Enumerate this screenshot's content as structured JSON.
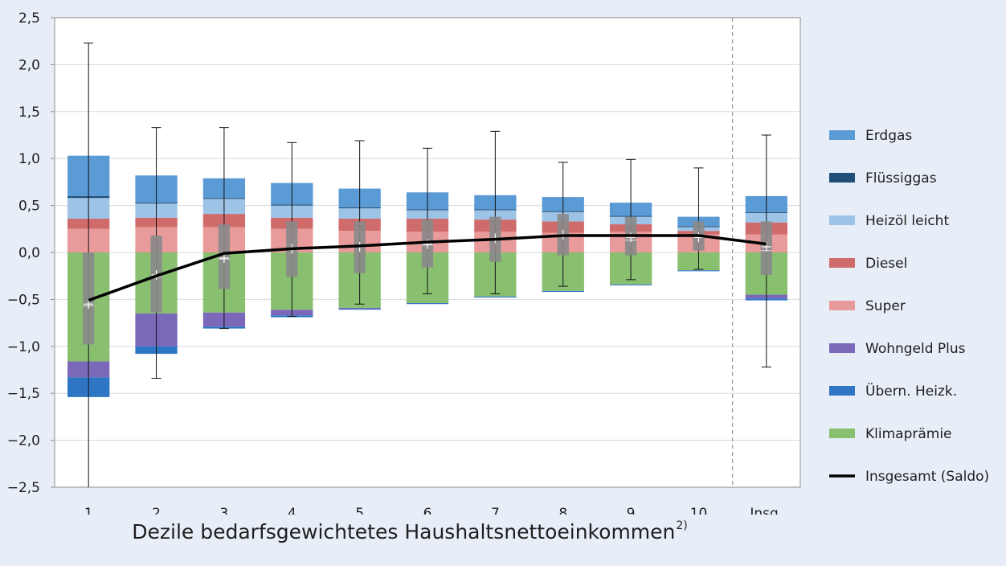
{
  "chart_data": {
    "type": "bar",
    "xlabel": "Dezile bedarfsgewichtetes Haushaltsnettoeinkommen",
    "xlabel_footnote": "2)",
    "ylim": [
      -2.5,
      2.5
    ],
    "yticks": [
      2.5,
      2.0,
      1.5,
      1.0,
      0.5,
      0.0,
      -0.5,
      -1.0,
      -1.5,
      -2.0,
      -2.5
    ],
    "ytick_labels": [
      "2,5",
      "2,0",
      "1,5",
      "1,0",
      "0,5",
      "0,0",
      "−0,5",
      "−1,0",
      "−1,5",
      "−2,0",
      "−2,5"
    ],
    "categories": [
      "1",
      "2",
      "3",
      "4",
      "5",
      "6",
      "7",
      "8",
      "9",
      "10",
      "Insg."
    ],
    "grid": true,
    "legend_position": "right",
    "series": [
      {
        "name": "Erdgas",
        "color": "#5b9bd5",
        "values": [
          0.43,
          0.29,
          0.21,
          0.23,
          0.2,
          0.18,
          0.15,
          0.15,
          0.14,
          0.1,
          0.17
        ]
      },
      {
        "name": "Flüssiggas",
        "color": "#1f4e79",
        "values": [
          0.02,
          0.01,
          0.01,
          0.01,
          0.01,
          0.01,
          0.01,
          0.01,
          0.01,
          0.01,
          0.01
        ]
      },
      {
        "name": "Heizöl leicht",
        "color": "#9dc3e6",
        "values": [
          0.22,
          0.15,
          0.16,
          0.13,
          0.11,
          0.09,
          0.1,
          0.1,
          0.08,
          0.04,
          0.1
        ]
      },
      {
        "name": "Diesel",
        "color": "#d06b6b",
        "values": [
          0.11,
          0.1,
          0.14,
          0.12,
          0.13,
          0.14,
          0.13,
          0.12,
          0.08,
          0.04,
          0.13
        ]
      },
      {
        "name": "Super",
        "color": "#e99a9a",
        "values": [
          0.25,
          0.27,
          0.27,
          0.25,
          0.23,
          0.22,
          0.22,
          0.21,
          0.22,
          0.19,
          0.19
        ]
      },
      {
        "name": "Wohngeld Plus",
        "color": "#7b68b8",
        "values": [
          -0.17,
          -0.35,
          -0.15,
          -0.06,
          -0.01,
          0.0,
          0.0,
          0.0,
          0.0,
          0.0,
          -0.04
        ]
      },
      {
        "name": "Übern. Heizk.",
        "color": "#2e75c4",
        "values": [
          -0.21,
          -0.08,
          -0.02,
          -0.02,
          -0.01,
          -0.01,
          -0.01,
          -0.01,
          -0.01,
          -0.01,
          -0.02
        ]
      },
      {
        "name": "Klimaprämie",
        "color": "#88c070",
        "values": [
          -1.16,
          -0.65,
          -0.64,
          -0.61,
          -0.59,
          -0.54,
          -0.47,
          -0.41,
          -0.34,
          -0.19,
          -0.45
        ]
      }
    ],
    "saldo": {
      "name": "Insgesamt (Saldo)",
      "color": "#000000",
      "values": [
        -0.51,
        -0.25,
        -0.01,
        0.04,
        0.07,
        0.11,
        0.14,
        0.18,
        0.18,
        0.18,
        0.09
      ]
    },
    "whiskers": {
      "max": [
        2.23,
        1.33,
        1.33,
        1.17,
        1.19,
        1.11,
        1.29,
        0.96,
        0.99,
        0.9,
        1.25
      ],
      "min": [
        -2.5,
        -1.34,
        -0.81,
        -0.68,
        -0.55,
        -0.44,
        -0.44,
        -0.36,
        -0.29,
        -0.18,
        -1.22
      ]
    },
    "boxes": {
      "q1": [
        -0.98,
        -0.64,
        -0.39,
        -0.26,
        -0.22,
        -0.16,
        -0.1,
        -0.03,
        -0.03,
        0.02,
        -0.24
      ],
      "q3": [
        0.0,
        0.18,
        0.3,
        0.33,
        0.33,
        0.35,
        0.38,
        0.41,
        0.38,
        0.33,
        0.33
      ],
      "median": [
        -0.57,
        -0.26,
        -0.07,
        0.03,
        0.07,
        0.08,
        0.14,
        0.17,
        0.13,
        0.17,
        0.02
      ],
      "mean": [
        -0.55,
        -0.24,
        -0.06,
        0.04,
        0.06,
        0.09,
        0.15,
        0.19,
        0.16,
        0.16,
        0.06
      ]
    }
  }
}
